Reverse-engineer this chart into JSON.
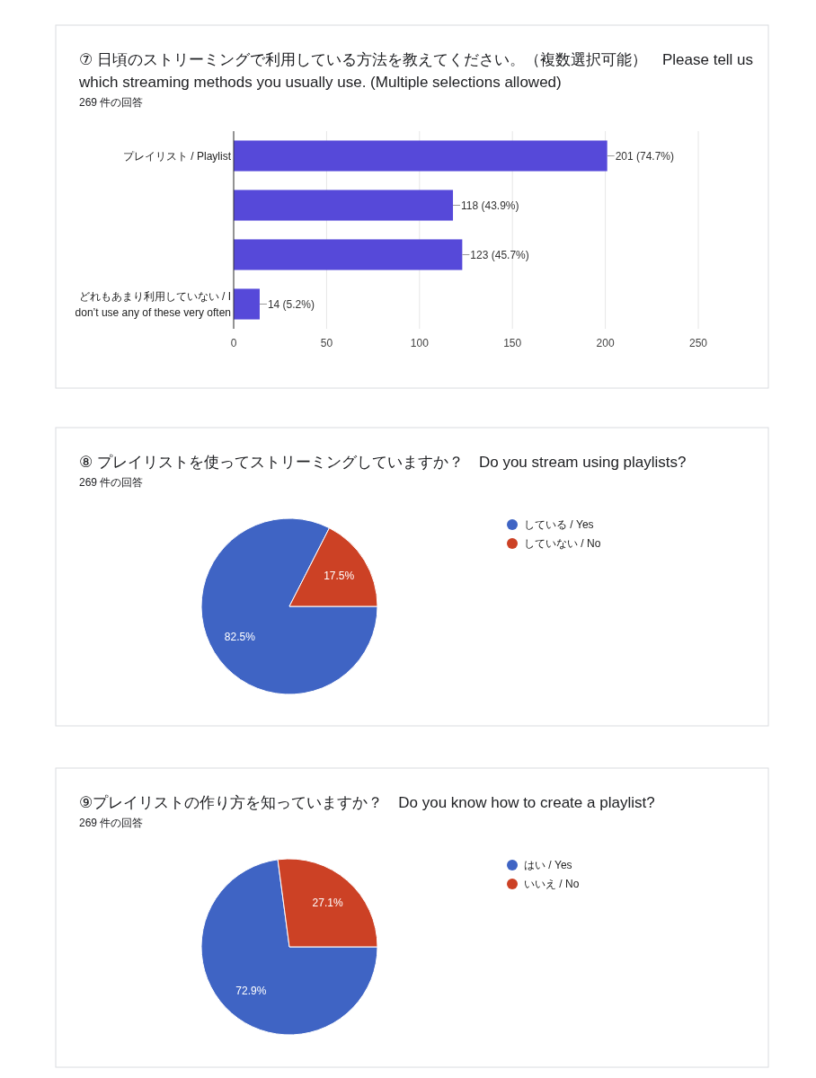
{
  "chart_data": [
    {
      "type": "bar",
      "orientation": "horizontal",
      "title": "⑦ 日頃のストリーミングで利用している方法を教えてください。（複数選択可能）　Please tell us which streaming methods you usually use. (Multiple selections allowed)",
      "subtitle": "269 件の回答",
      "categories": [
        "プレイリスト / Playlist",
        null,
        null,
        "どれもあまり利用していない / I don’t use any of these very often"
      ],
      "values": [
        201,
        118,
        123,
        14
      ],
      "value_labels": [
        "201 (74.7%)",
        "118 (43.9%)",
        "123 (45.7%)",
        "14 (5.2%)"
      ],
      "color": "#5649d9",
      "xlim": [
        0,
        250
      ],
      "xticks": [
        0,
        50,
        100,
        150,
        200,
        250
      ],
      "grid": "x"
    },
    {
      "type": "pie",
      "title": "⑧ プレイリストを使ってストリーミングしていますか？　Do you stream using playlists?",
      "subtitle": "269 件の回答",
      "categories": [
        "している / Yes",
        "していない / No"
      ],
      "values": [
        82.5,
        17.5
      ],
      "value_labels": [
        "82.5%",
        "17.5%"
      ],
      "colors": [
        "#3f64c4",
        "#cc4125"
      ],
      "legend": "right"
    },
    {
      "type": "pie",
      "title": "⑨プレイリストの作り方を知っていますか？　Do you know how to create a playlist?",
      "subtitle": "269 件の回答",
      "categories": [
        "はい / Yes",
        "いいえ / No"
      ],
      "values": [
        72.9,
        27.1
      ],
      "value_labels": [
        "72.9%",
        "27.1%"
      ],
      "colors": [
        "#3f64c4",
        "#cc4125"
      ],
      "legend": "right"
    }
  ]
}
